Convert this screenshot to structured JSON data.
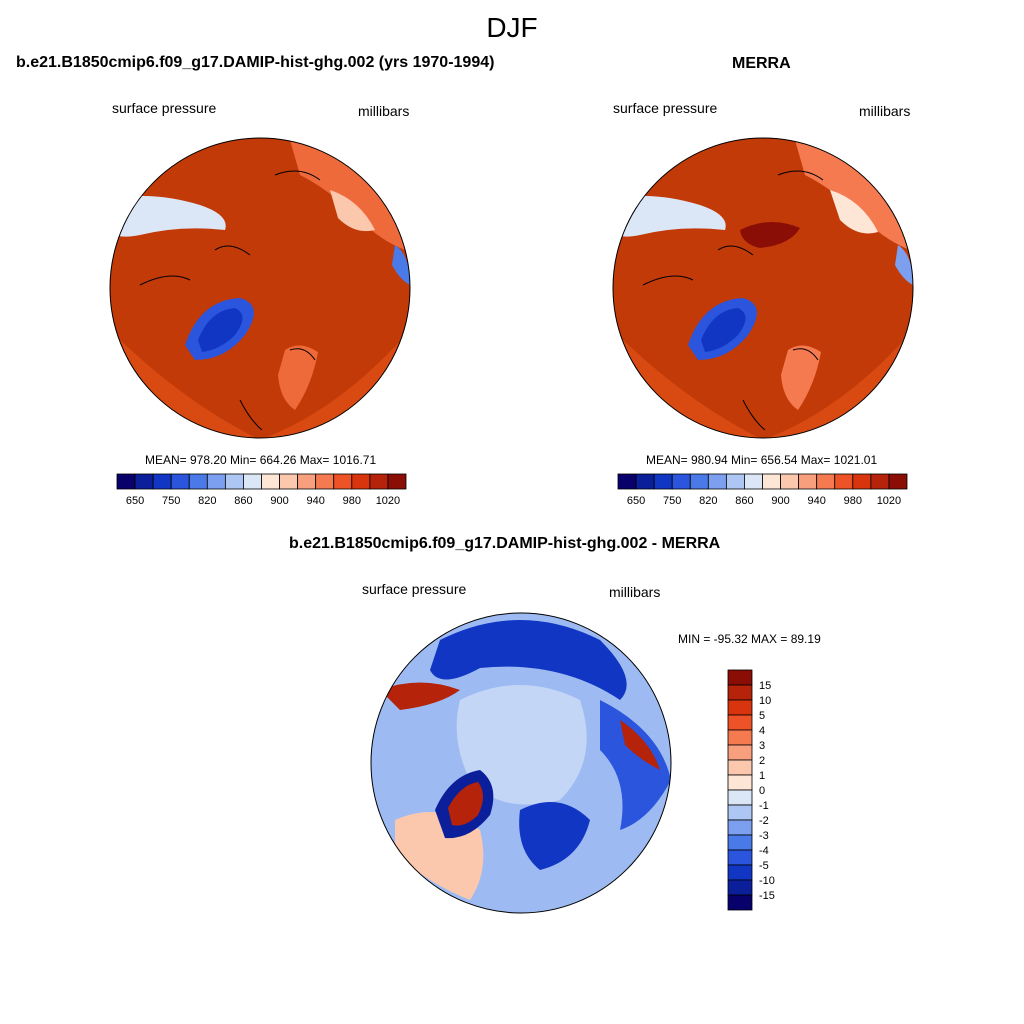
{
  "figure_title": "DJF",
  "palette": {
    "full": [
      "#08006b",
      "#0c1f9a",
      "#1236c4",
      "#2a55dc",
      "#4a7ae8",
      "#7ca0ef",
      "#adc6f3",
      "#dbe7f7",
      "#fde6d6",
      "#fbc7ad",
      "#f8a07e",
      "#f57a50",
      "#ee5227",
      "#d8350e",
      "#b4230a",
      "#8a0e05"
    ],
    "ocean_fill": "#c23a08",
    "diff_ocean": "#9dbbf2"
  },
  "panels": [
    {
      "title": "b.e21.B1850cmip6.f09_g17.DAMIP-hist-ghg.002 (yrs 1970-1994)",
      "left_label": "surface pressure",
      "right_label": "millibars",
      "stats": "MEAN= 978.20  Min= 664.26  Max= 1016.71",
      "colorbar_ticks": [
        "650",
        "750",
        "820",
        "860",
        "900",
        "940",
        "980",
        "1020"
      ]
    },
    {
      "title": "MERRA",
      "left_label": "surface pressure",
      "right_label": "millibars",
      "stats": "MEAN= 980.94  Min= 656.54  Max= 1021.01",
      "colorbar_ticks": [
        "650",
        "750",
        "820",
        "860",
        "900",
        "940",
        "980",
        "1020"
      ]
    },
    {
      "title": "b.e21.B1850cmip6.f09_g17.DAMIP-hist-ghg.002 - MERRA",
      "left_label": "surface pressure",
      "right_label": "millibars",
      "stats": "MIN = -95.32 MAX =  89.19",
      "colorbar_ticks": [
        "15",
        "10",
        "5",
        "4",
        "3",
        "2",
        "1",
        "0",
        "-1",
        "-2",
        "-3",
        "-4",
        "-5",
        "-10",
        "-15"
      ]
    }
  ],
  "chart_data": [
    {
      "type": "heatmap",
      "title": "b.e21.B1850cmip6.f09_g17.DAMIP-hist-ghg.002 (yrs 1970-1994)",
      "variable": "surface pressure",
      "units": "millibars",
      "projection": "polar stereographic (north pole)",
      "mean": 978.2,
      "min": 664.26,
      "max": 1016.71,
      "colorbar_levels": [
        650,
        750,
        820,
        860,
        900,
        940,
        980,
        1020
      ]
    },
    {
      "type": "heatmap",
      "title": "MERRA",
      "variable": "surface pressure",
      "units": "millibars",
      "projection": "polar stereographic (north pole)",
      "mean": 980.94,
      "min": 656.54,
      "max": 1021.01,
      "colorbar_levels": [
        650,
        750,
        820,
        860,
        900,
        940,
        980,
        1020
      ]
    },
    {
      "type": "heatmap",
      "title": "b.e21.B1850cmip6.f09_g17.DAMIP-hist-ghg.002 - MERRA",
      "variable": "surface pressure",
      "units": "millibars",
      "projection": "polar stereographic (north pole)",
      "min": -95.32,
      "max": 89.19,
      "colorbar_levels": [
        15,
        10,
        5,
        4,
        3,
        2,
        1,
        0,
        -1,
        -2,
        -3,
        -4,
        -5,
        -10,
        -15
      ]
    }
  ]
}
